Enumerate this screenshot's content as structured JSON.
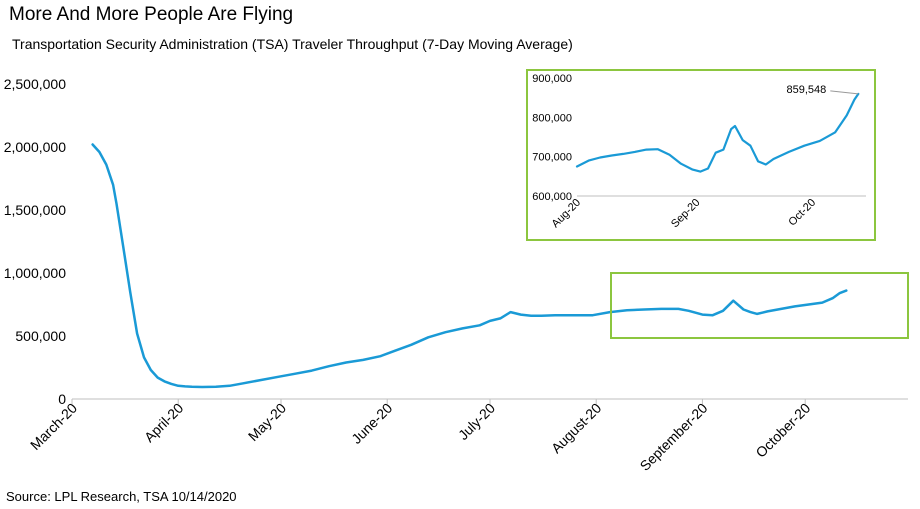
{
  "title": "More And More People Are Flying",
  "subtitle": "Transportation Security Administration (TSA) Traveler Throughput (7-Day Moving Average)",
  "source": "Source: LPL Research, TSA 10/14/2020",
  "colors": {
    "line": "#1a9ad6",
    "highlight_box": "#8cc63f",
    "axis": "#bfbfbf"
  },
  "chart_data": [
    {
      "type": "line",
      "title": "",
      "xlabel": "",
      "ylabel": "",
      "ylim": [
        0,
        2500000
      ],
      "y_ticks": [
        "0",
        "500,000",
        "1,000,000",
        "1,500,000",
        "2,000,000",
        "2,500,000"
      ],
      "y_tick_values": [
        0,
        500000,
        1000000,
        1500000,
        2000000,
        2500000
      ],
      "x_ticks": [
        "March-20",
        "April-20",
        "May-20",
        "June-20",
        "July-20",
        "August-20",
        "September-20",
        "October-20"
      ],
      "x_tick_values": [
        "2020-03-01",
        "2020-04-01",
        "2020-05-01",
        "2020-06-01",
        "2020-07-01",
        "2020-08-01",
        "2020-09-01",
        "2020-10-01"
      ],
      "grid": false,
      "series": [
        {
          "x": [
            "2020-03-07",
            "2020-03-09",
            "2020-03-11",
            "2020-03-13",
            "2020-03-14",
            "2020-03-16",
            "2020-03-18",
            "2020-03-20",
            "2020-03-22",
            "2020-03-24",
            "2020-03-26",
            "2020-03-28",
            "2020-03-30",
            "2020-04-01",
            "2020-04-03",
            "2020-04-05",
            "2020-04-08",
            "2020-04-12",
            "2020-04-16",
            "2020-04-20",
            "2020-04-25",
            "2020-05-01",
            "2020-05-05",
            "2020-05-10",
            "2020-05-15",
            "2020-05-20",
            "2020-05-25",
            "2020-05-30",
            "2020-06-03",
            "2020-06-08",
            "2020-06-13",
            "2020-06-18",
            "2020-06-23",
            "2020-06-28",
            "2020-07-01",
            "2020-07-04",
            "2020-07-07",
            "2020-07-10",
            "2020-07-13",
            "2020-07-16",
            "2020-07-20",
            "2020-07-25",
            "2020-07-31",
            "2020-08-05",
            "2020-08-10",
            "2020-08-15",
            "2020-08-20",
            "2020-08-25",
            "2020-08-28",
            "2020-09-01",
            "2020-09-04",
            "2020-09-07",
            "2020-09-10",
            "2020-09-13",
            "2020-09-15",
            "2020-09-17",
            "2020-09-20",
            "2020-09-24",
            "2020-09-28",
            "2020-10-02",
            "2020-10-06",
            "2020-10-09",
            "2020-10-11",
            "2020-10-13"
          ],
          "values": [
            2020000,
            1960000,
            1860000,
            1700000,
            1550000,
            1200000,
            850000,
            520000,
            330000,
            230000,
            170000,
            140000,
            120000,
            105000,
            100000,
            97000,
            95000,
            98000,
            105000,
            125000,
            150000,
            180000,
            200000,
            225000,
            260000,
            290000,
            310000,
            340000,
            380000,
            430000,
            490000,
            530000,
            560000,
            585000,
            620000,
            640000,
            690000,
            670000,
            660000,
            660000,
            665000,
            665000,
            665000,
            690000,
            705000,
            710000,
            715000,
            715000,
            700000,
            670000,
            665000,
            700000,
            780000,
            710000,
            690000,
            675000,
            695000,
            715000,
            735000,
            750000,
            765000,
            800000,
            840000,
            860000
          ]
        }
      ]
    },
    {
      "type": "line",
      "title": "",
      "xlabel": "",
      "ylabel": "",
      "ylim": [
        600000,
        900000
      ],
      "y_ticks": [
        "600,000",
        "700,000",
        "800,000",
        "900,000"
      ],
      "y_tick_values": [
        600000,
        700000,
        800000,
        900000
      ],
      "x_ticks": [
        "Aug-20",
        "Sep-20",
        "Oct-20"
      ],
      "x_tick_values": [
        "2020-08-01",
        "2020-09-01",
        "2020-10-01"
      ],
      "annotations": [
        {
          "text": "859,548",
          "x": "2020-10-13",
          "y": 859548
        }
      ],
      "grid": false,
      "series": [
        {
          "x": [
            "2020-08-01",
            "2020-08-04",
            "2020-08-07",
            "2020-08-10",
            "2020-08-13",
            "2020-08-16",
            "2020-08-19",
            "2020-08-22",
            "2020-08-25",
            "2020-08-28",
            "2020-08-31",
            "2020-09-02",
            "2020-09-04",
            "2020-09-06",
            "2020-09-08",
            "2020-09-10",
            "2020-09-11",
            "2020-09-13",
            "2020-09-15",
            "2020-09-17",
            "2020-09-19",
            "2020-09-21",
            "2020-09-25",
            "2020-09-29",
            "2020-10-03",
            "2020-10-07",
            "2020-10-10",
            "2020-10-12",
            "2020-10-13"
          ],
          "values": [
            675000,
            690000,
            698000,
            703000,
            707000,
            712000,
            718000,
            719000,
            705000,
            682000,
            667000,
            662000,
            670000,
            710000,
            718000,
            770000,
            778000,
            742000,
            728000,
            688000,
            680000,
            694000,
            712000,
            728000,
            740000,
            762000,
            805000,
            845000,
            859548
          ]
        }
      ]
    }
  ]
}
